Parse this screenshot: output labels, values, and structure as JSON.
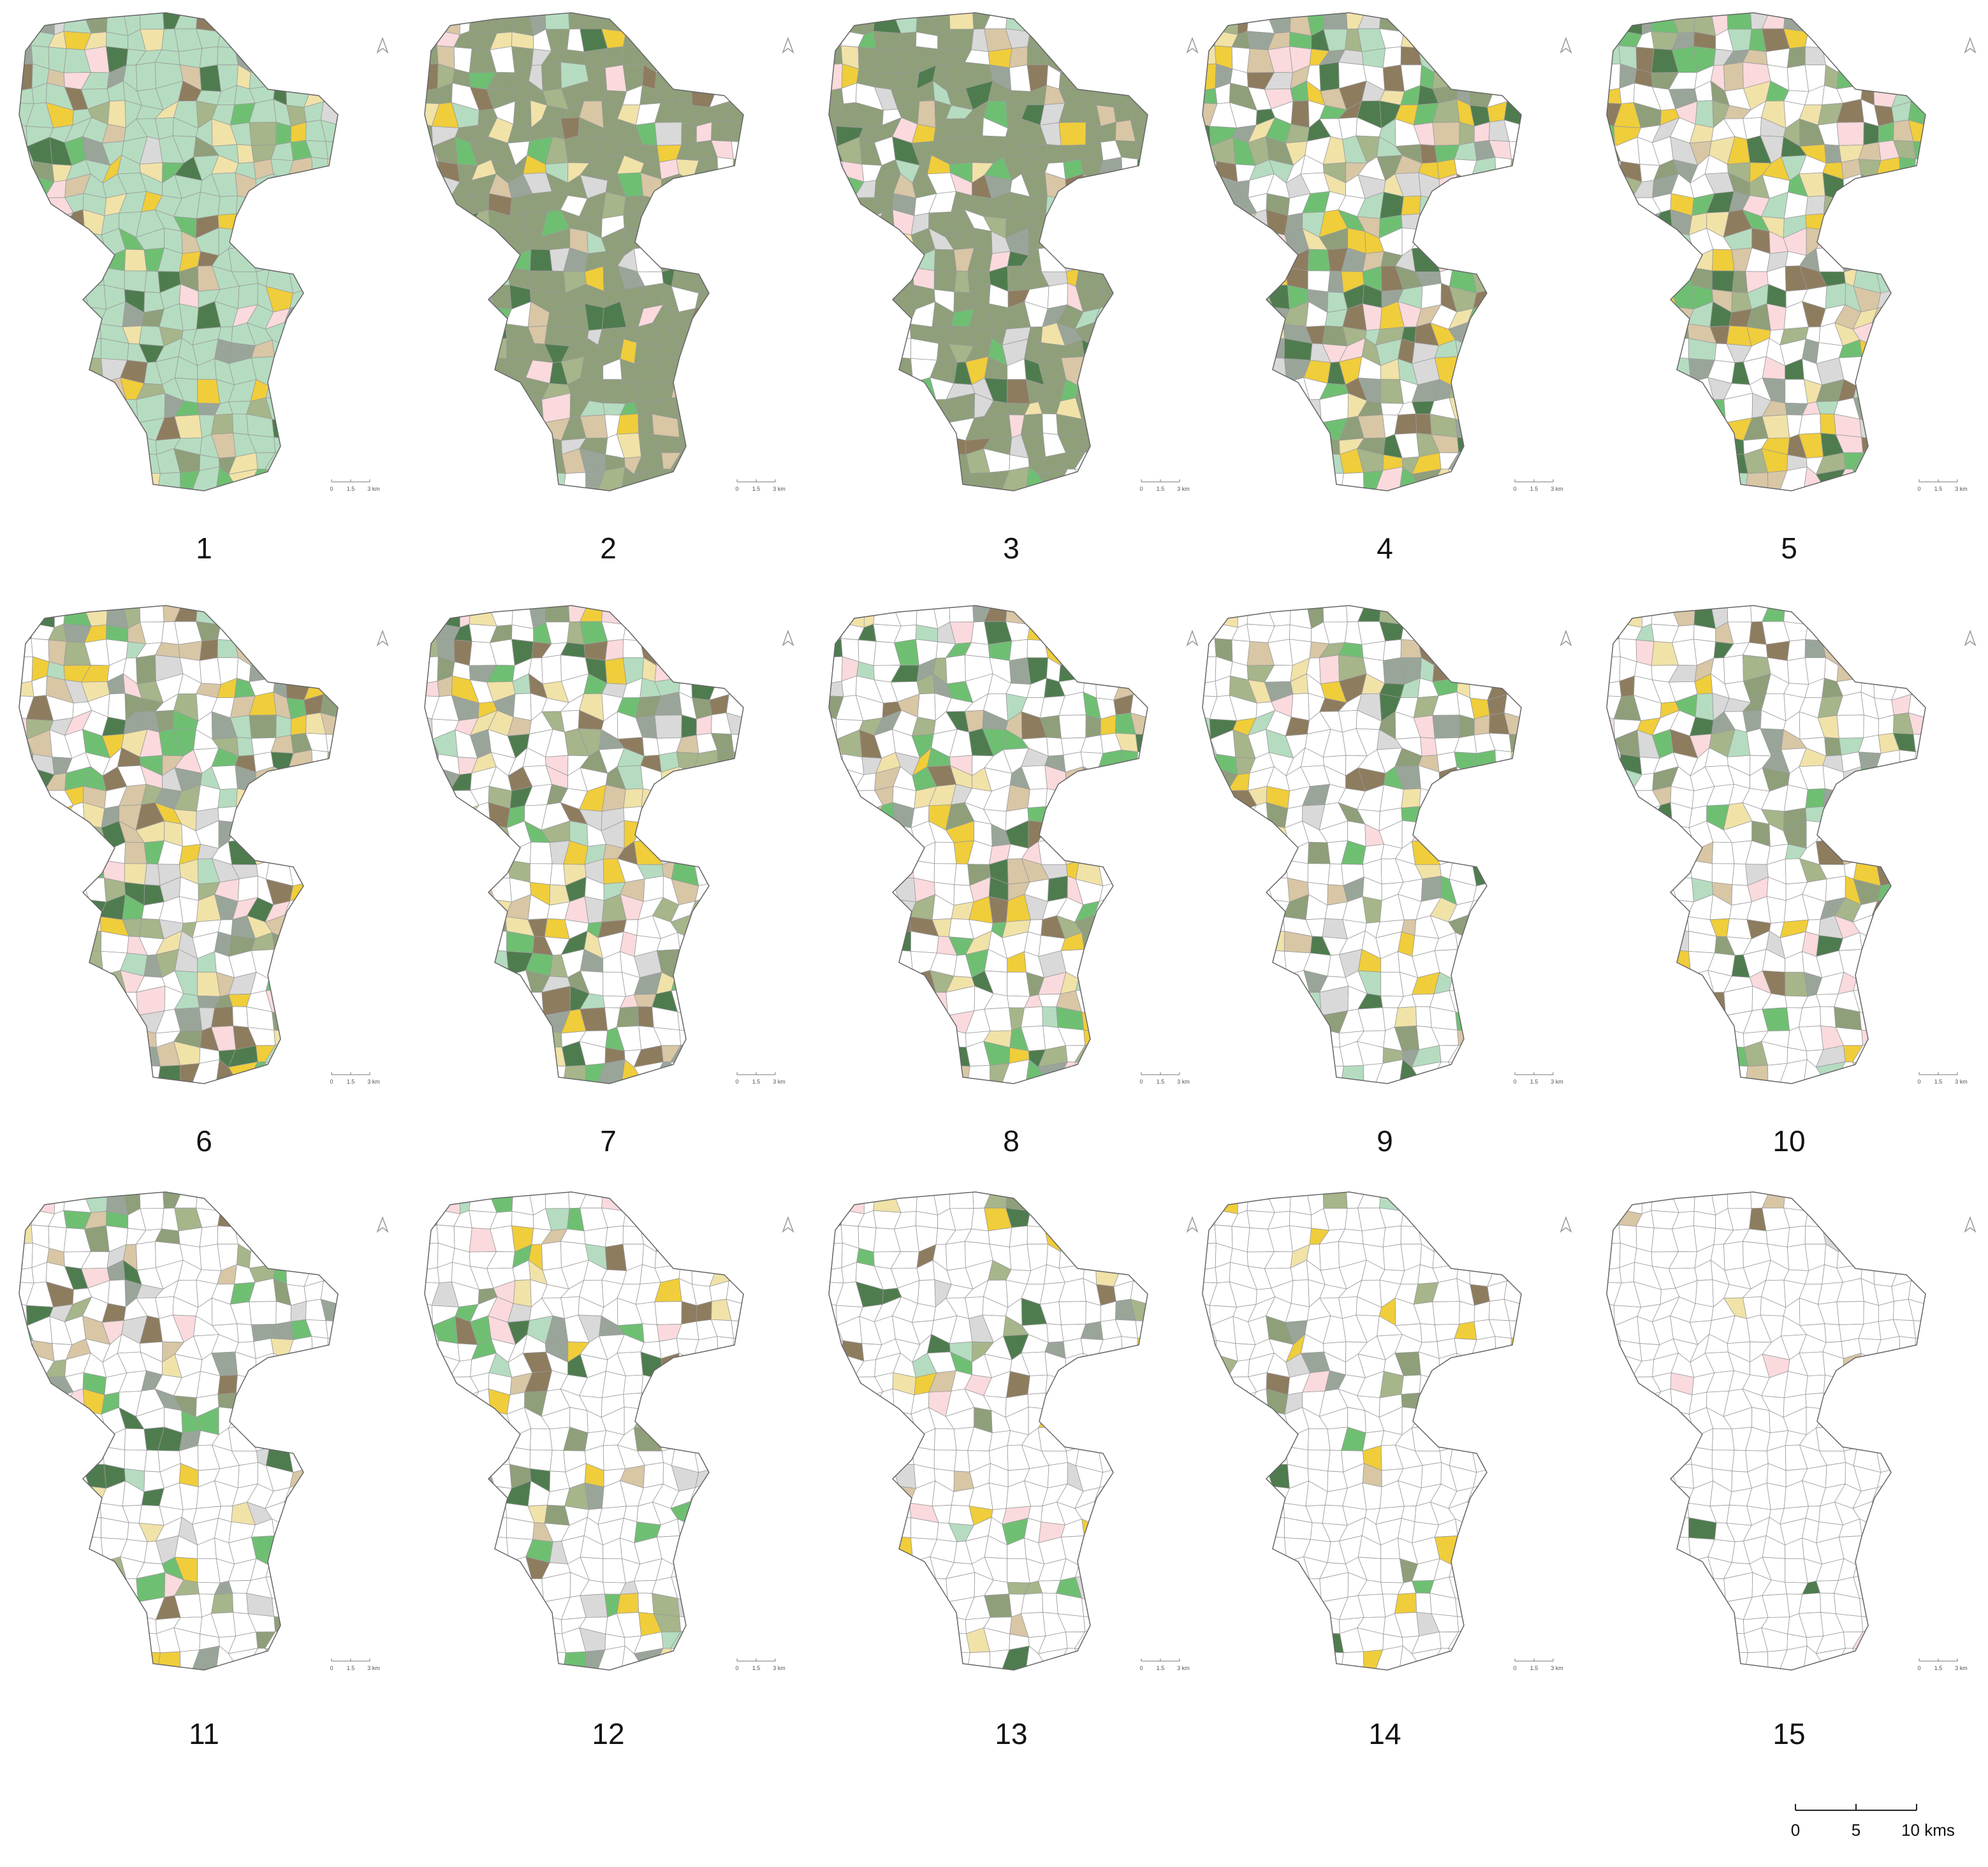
{
  "panels": [
    {
      "label": "1"
    },
    {
      "label": "2"
    },
    {
      "label": "3"
    },
    {
      "label": "4"
    },
    {
      "label": "5"
    },
    {
      "label": "6"
    },
    {
      "label": "7"
    },
    {
      "label": "8"
    },
    {
      "label": "9"
    },
    {
      "label": "10"
    },
    {
      "label": "11"
    },
    {
      "label": "12"
    },
    {
      "label": "13"
    },
    {
      "label": "14"
    },
    {
      "label": "15"
    }
  ],
  "panel_scale_bar": {
    "labels": [
      "0",
      "1.5",
      "3 km"
    ]
  },
  "scale_bar": {
    "labels": [
      "0",
      "5",
      "10 kms"
    ]
  }
}
